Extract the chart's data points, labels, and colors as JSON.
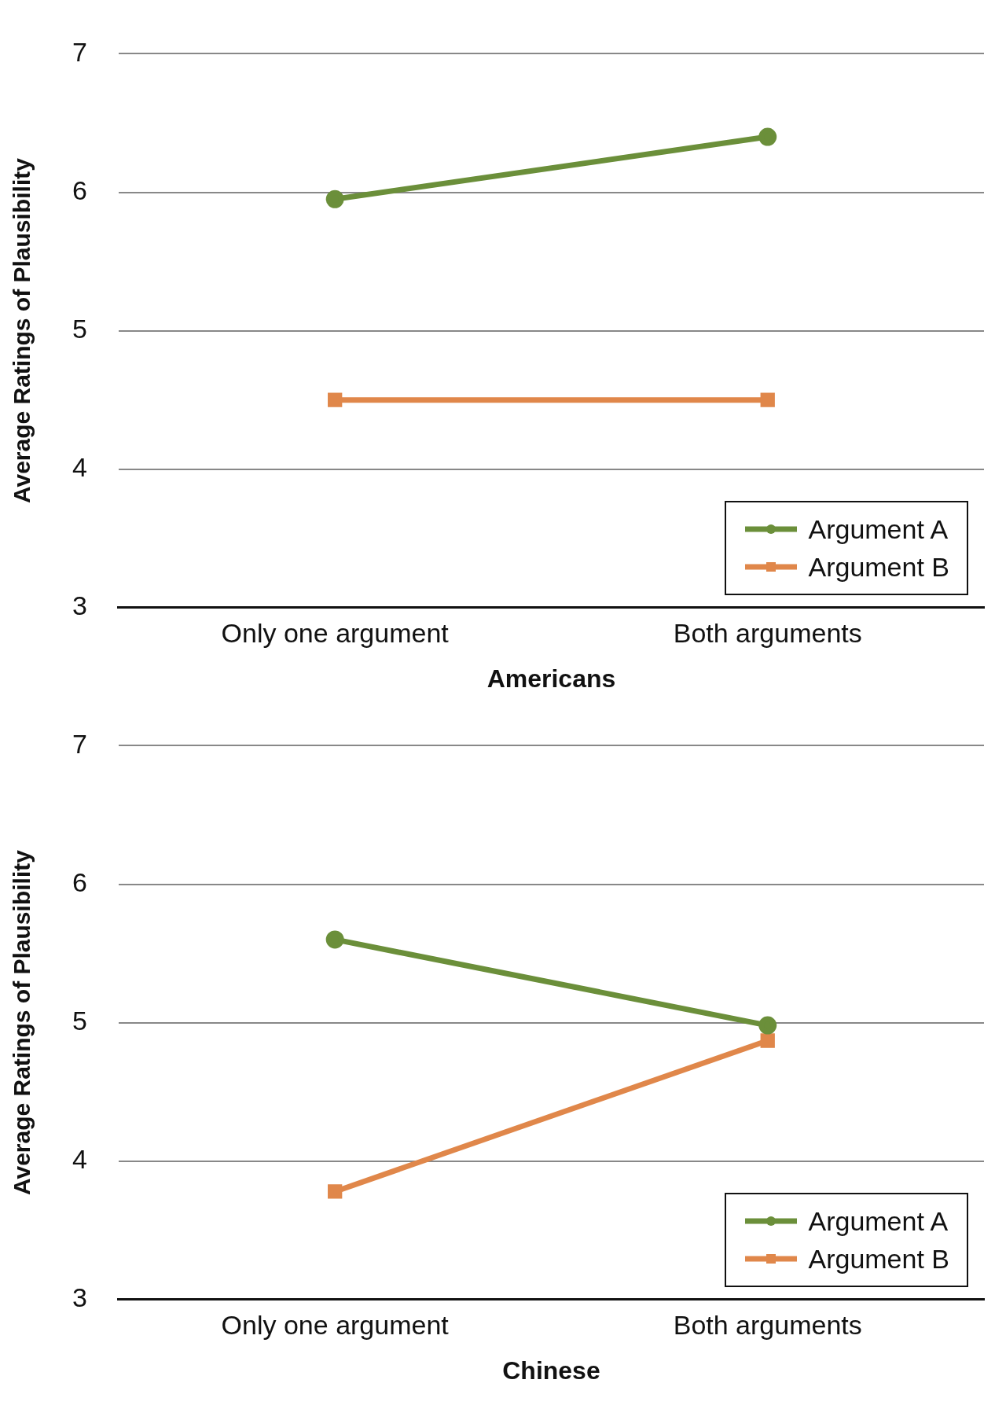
{
  "chart_data": [
    {
      "type": "line",
      "xlabel": "Americans",
      "ylabel": "Average Ratings of Plausibility",
      "categories": [
        "Only one argument",
        "Both arguments"
      ],
      "ylim": [
        3,
        7
      ],
      "yticks": [
        3,
        4,
        5,
        6,
        7
      ],
      "grid": "y",
      "legend": "bottom right",
      "line_style": "solid",
      "series": [
        {
          "name": "Argument A",
          "color": "#6b8f3a",
          "marker": "circle",
          "values": [
            5.95,
            6.4
          ]
        },
        {
          "name": "Argument B",
          "color": "#e0874a",
          "marker": "square",
          "values": [
            4.5,
            4.5
          ]
        }
      ]
    },
    {
      "type": "line",
      "xlabel": "Chinese",
      "ylabel": "Average Ratings of Plausibility",
      "categories": [
        "Only one argument",
        "Both arguments"
      ],
      "ylim": [
        3,
        7
      ],
      "yticks": [
        3,
        4,
        5,
        6,
        7
      ],
      "grid": "y",
      "legend": "bottom right",
      "line_style": "solid",
      "series": [
        {
          "name": "Argument A",
          "color": "#6b8f3a",
          "marker": "circle",
          "values": [
            5.6,
            4.98
          ]
        },
        {
          "name": "Argument B",
          "color": "#e0874a",
          "marker": "square",
          "values": [
            3.78,
            4.87
          ]
        }
      ]
    }
  ]
}
